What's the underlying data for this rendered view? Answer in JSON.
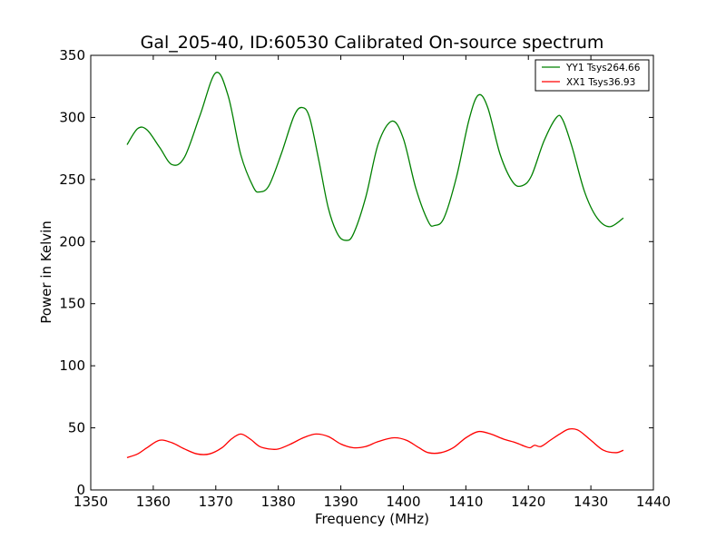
{
  "chart_data": {
    "type": "line",
    "title": "Gal_205-40, ID:60530 Calibrated On-source spectrum",
    "xlabel": "Frequency (MHz)",
    "ylabel": "Power in Kelvin",
    "xlim": [
      1350,
      1440
    ],
    "ylim": [
      0,
      350
    ],
    "xticks": [
      1350,
      1360,
      1370,
      1380,
      1390,
      1400,
      1410,
      1420,
      1430,
      1440
    ],
    "yticks": [
      0,
      50,
      100,
      150,
      200,
      250,
      300,
      350
    ],
    "grid": false,
    "legend_position": "top-right",
    "series": [
      {
        "name": "YY1 Tsys264.66",
        "color": "#008000",
        "x": [
          1355.8,
          1357.5,
          1359.0,
          1361.0,
          1363.0,
          1365.0,
          1367.5,
          1370.0,
          1372.0,
          1374.0,
          1376.0,
          1377.0,
          1378.5,
          1380.5,
          1382.5,
          1383.8,
          1385.0,
          1386.5,
          1388.0,
          1389.5,
          1390.8,
          1392.0,
          1394.0,
          1396.0,
          1398.2,
          1400.0,
          1402.0,
          1404.0,
          1405.0,
          1406.5,
          1408.5,
          1410.5,
          1412.0,
          1413.5,
          1415.5,
          1417.5,
          1419.0,
          1420.5,
          1422.5,
          1424.5,
          1425.5,
          1427.0,
          1429.0,
          1431.0,
          1433.0,
          1435.2
        ],
        "y": [
          278,
          291,
          290,
          276,
          262,
          268,
          302,
          336,
          317,
          270,
          244,
          240,
          245,
          271,
          301,
          308,
          300,
          265,
          227,
          206,
          201,
          206,
          236,
          279,
          297,
          283,
          243,
          216,
          213,
          219,
          252,
          298,
          318,
          308,
          270,
          248,
          245,
          253,
          281,
          300,
          298,
          276,
          240,
          219,
          212,
          219
        ]
      },
      {
        "name": "XX1 Tsys36.93",
        "color": "#ff0000",
        "x": [
          1355.8,
          1357.5,
          1359.0,
          1361.0,
          1363.0,
          1365.0,
          1367.0,
          1369.0,
          1371.0,
          1372.5,
          1374.0,
          1375.5,
          1377.0,
          1378.5,
          1380.0,
          1382.0,
          1384.0,
          1386.0,
          1388.0,
          1390.0,
          1392.0,
          1394.0,
          1396.0,
          1398.5,
          1400.5,
          1402.5,
          1404.0,
          1406.0,
          1408.0,
          1410.0,
          1412.0,
          1414.0,
          1416.0,
          1418.0,
          1419.5,
          1420.3,
          1421.0,
          1422.0,
          1423.5,
          1425.0,
          1426.5,
          1428.0,
          1430.0,
          1432.0,
          1434.0,
          1435.2
        ],
        "y": [
          26,
          29,
          34,
          40,
          38,
          33,
          29,
          29,
          34,
          41,
          45,
          41,
          35,
          33,
          33,
          37,
          42,
          45,
          43,
          37,
          34,
          35,
          39,
          42,
          40,
          34,
          30,
          30,
          34,
          42,
          47,
          45,
          41,
          38,
          35,
          34,
          36,
          35,
          40,
          45,
          49,
          48,
          40,
          32,
          30,
          32
        ]
      }
    ]
  }
}
